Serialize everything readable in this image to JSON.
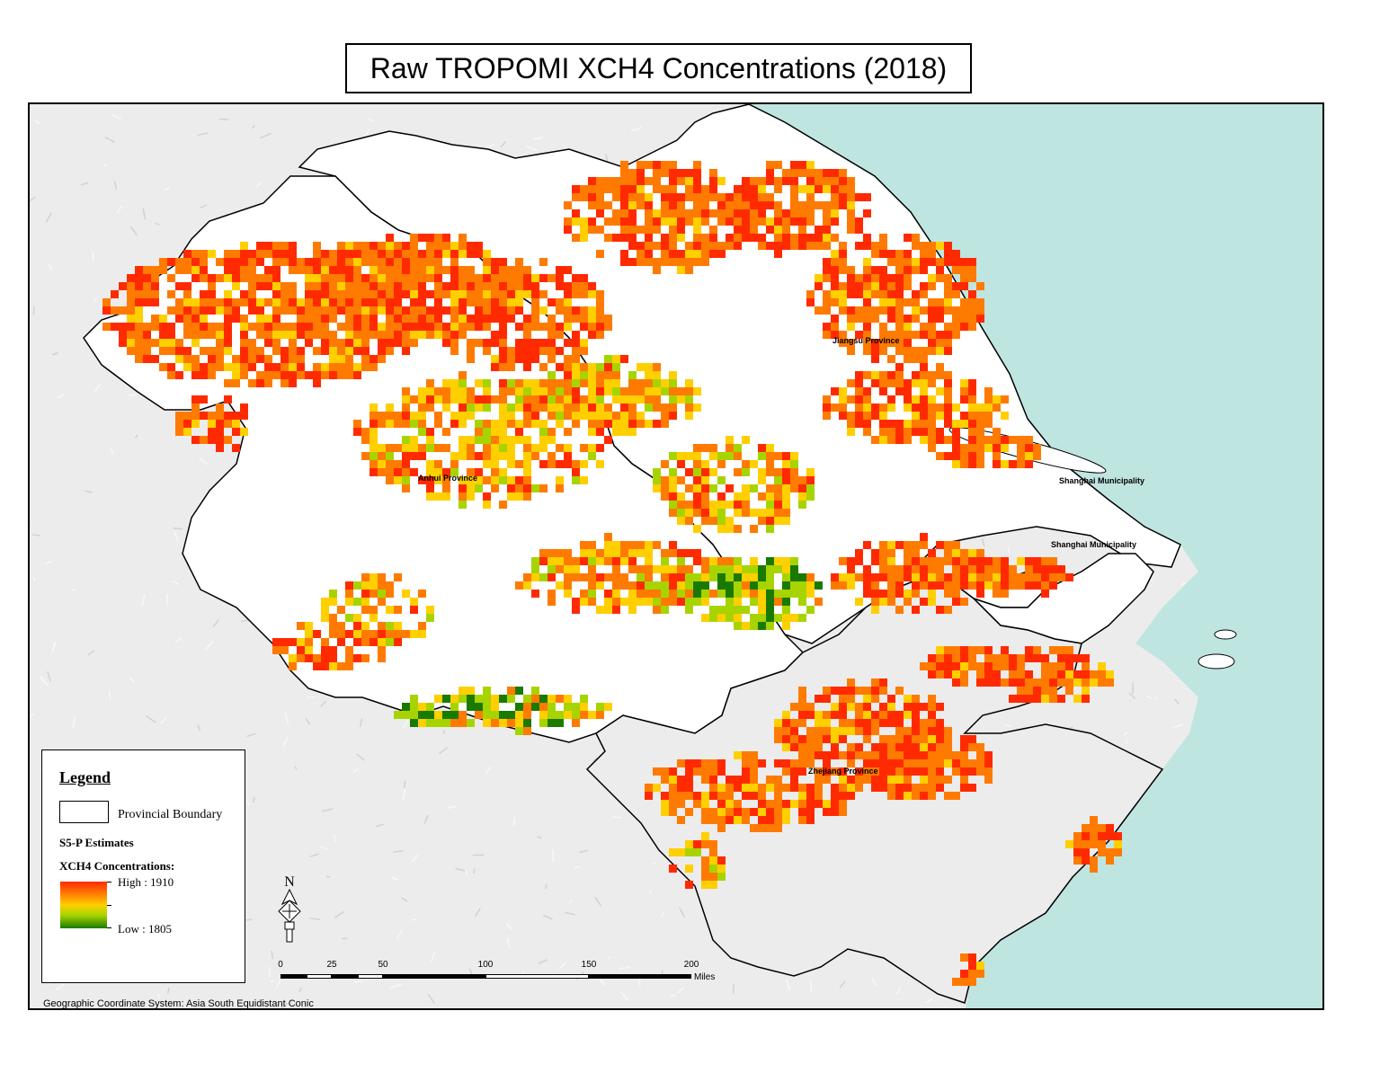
{
  "title": "Raw TROPOMI XCH4 Concentrations (2018)",
  "province_labels": {
    "jiangsu": "Jiangsu Province",
    "anhui": "Anhui Province",
    "shanghai_north": "Shanghai Municipality",
    "shanghai_south": "Shanghai Municipality",
    "zhejiang": "Zhejiang Province"
  },
  "legend": {
    "title": "Legend",
    "boundary_label": "Provincial Boundary",
    "estimates_label": "S5-P Estimates",
    "concentrations_label": "XCH4 Concentrations:",
    "high_label": "High : 1910",
    "low_label": "Low : 1805"
  },
  "north_arrow": {
    "letter": "N"
  },
  "scale_bar": {
    "ticks": [
      "0",
      "25",
      "50",
      "100",
      "150",
      "200"
    ],
    "units": "Miles"
  },
  "coordinate_system": "Geographic Coordinate System: Asia South Equidistant Conic",
  "colors": {
    "sea": "#bfe5e0",
    "land": "#ffffff",
    "terrain": "#e3e3e3",
    "boundary": "#000000",
    "high": "#ff2a00",
    "mid_high": "#ff7a00",
    "mid": "#ffcf00",
    "mid_low": "#a7d400",
    "low": "#1a7a00"
  }
}
